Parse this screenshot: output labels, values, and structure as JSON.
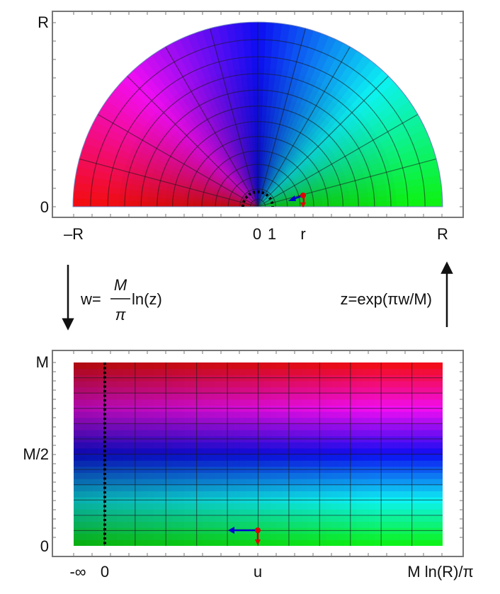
{
  "top_panel": {
    "x_tick_labels": [
      "–R",
      "0",
      "1",
      "r",
      "R"
    ],
    "y_tick_labels": [
      "0",
      "R"
    ]
  },
  "bottom_panel": {
    "x_tick_labels": [
      "-∞",
      "0",
      "u",
      "M ln(R)/π"
    ],
    "y_tick_labels": [
      "0",
      "M/2",
      "M"
    ]
  },
  "left_map": {
    "lhs": "w=",
    "numerator": "M",
    "denominator": "π",
    "rhs": "ln(z)"
  },
  "right_map": {
    "formula": "z=exp(πw/M)"
  },
  "colors": {
    "frame": "#777777",
    "grid": "#1a1a1a",
    "dotted_curve": "#000000",
    "arrow_red": "#e00000",
    "arrow_blue": "#0000d0",
    "panel_edge": "#7a8fd0"
  }
}
